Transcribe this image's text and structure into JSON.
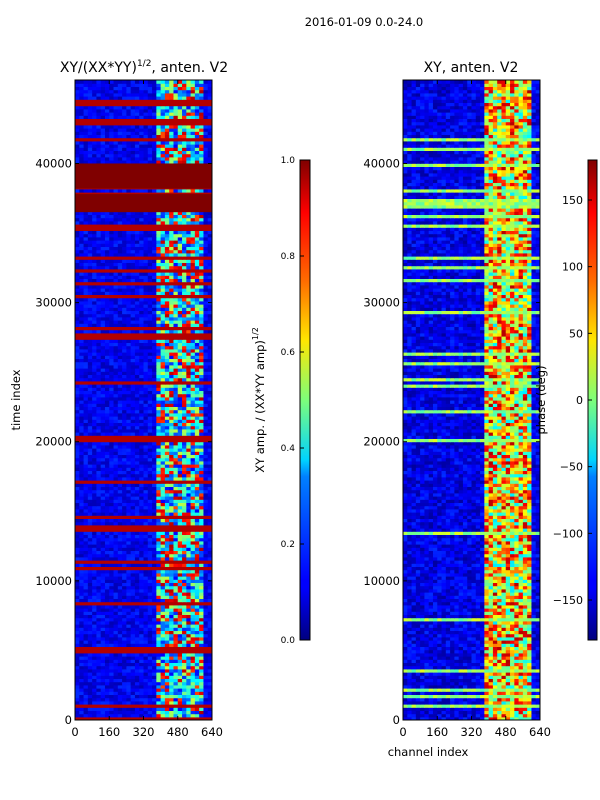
{
  "figure": {
    "suptitle": "2016-01-09 0.0-24.0"
  },
  "chart_data": [
    {
      "type": "heatmap",
      "title": "XY/(XX*YY)",
      "title_superscript": "1/2",
      "title_suffix": ", anten. V2",
      "xlabel": "",
      "ylabel": "time index",
      "xlim": [
        0,
        640
      ],
      "ylim": [
        0,
        46000
      ],
      "xticks": [
        0,
        160,
        320,
        480,
        640
      ],
      "yticks": [
        0,
        10000,
        20000,
        30000,
        40000
      ],
      "colorbar": {
        "label": "XY amp. / (XX*YY amp)",
        "label_superscript": "1/2",
        "range": [
          0.0,
          1.0
        ],
        "ticks": [
          "0.0",
          "0.2",
          "0.4",
          "0.6",
          "0.8",
          "1.0"
        ],
        "colormap": "jet"
      },
      "flagged_time_bands": [
        [
          38200,
          40000
        ],
        [
          36500,
          37800
        ]
      ],
      "active_channel_range": [
        380,
        600
      ]
    },
    {
      "type": "heatmap",
      "title": "XY, anten. V2",
      "xlabel": "channel index",
      "ylabel": "",
      "xlim": [
        0,
        640
      ],
      "ylim": [
        0,
        46000
      ],
      "xticks": [
        0,
        160,
        320,
        480,
        640
      ],
      "yticks": [
        0,
        10000,
        20000,
        30000,
        40000
      ],
      "colorbar": {
        "label": "phase (deg)",
        "range": [
          -180,
          180
        ],
        "ticks": [
          "150",
          "100",
          "50",
          "0",
          "−50",
          "−100",
          "−150"
        ],
        "colormap": "jet"
      },
      "active_channel_range": [
        380,
        600
      ]
    }
  ]
}
